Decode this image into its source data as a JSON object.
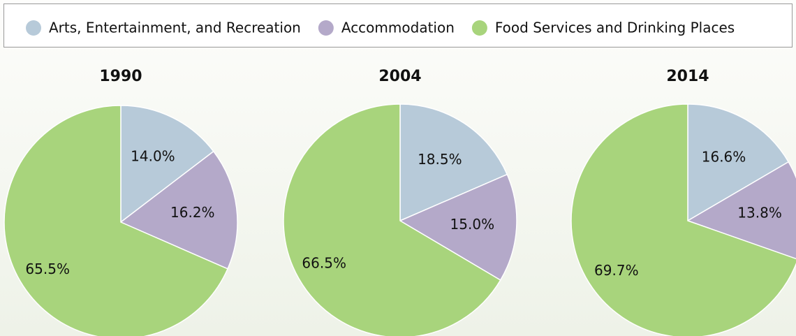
{
  "legend": {
    "labels": [
      "Arts, Entertainment, and Recreation",
      "Accommodation",
      "Food Services and Drinking Places"
    ],
    "colors": [
      "#b7cad9",
      "#b4a9c9",
      "#a8d47c"
    ]
  },
  "chart_data": [
    {
      "type": "pie",
      "title": "1990",
      "values": [
        14.0,
        16.2,
        65.5
      ],
      "value_labels": [
        "14.0%",
        "16.2%",
        "65.5%"
      ]
    },
    {
      "type": "pie",
      "title": "2004",
      "values": [
        18.5,
        15.0,
        66.5
      ],
      "value_labels": [
        "18.5%",
        "15.0%",
        "66.5%"
      ]
    },
    {
      "type": "pie",
      "title": "2014",
      "values": [
        16.6,
        13.8,
        69.7
      ],
      "value_labels": [
        "16.6%",
        "13.8%",
        "69.7%"
      ]
    }
  ]
}
